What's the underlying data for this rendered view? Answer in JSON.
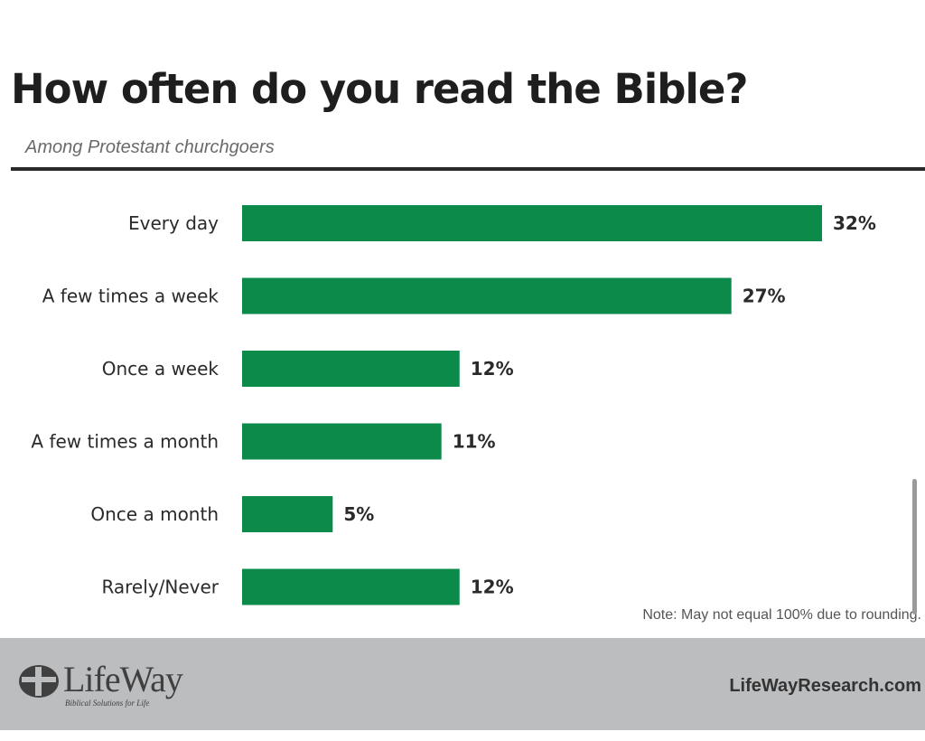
{
  "chart_data": {
    "type": "bar",
    "orientation": "horizontal",
    "title": "How often do you read the Bible?",
    "subtitle": "Among Protestant churchgoers",
    "categories": [
      "Every day",
      "A few times a week",
      "Once a week",
      "A few times a month",
      "Once a month",
      "Rarely/Never"
    ],
    "values": [
      32,
      27,
      12,
      11,
      5,
      12
    ],
    "value_labels": [
      "32%",
      "27%",
      "12%",
      "11%",
      "5%",
      "12%"
    ],
    "xlim": [
      0,
      32
    ],
    "grid": false,
    "bar_color": "#0b8a4a",
    "note": "Note: May not equal 100% due to rounding."
  },
  "footer": {
    "logo_name": "LifeWay",
    "logo_tagline": "Biblical Solutions for Life",
    "website": "LifeWayResearch.com",
    "background_color": "#bcbdbf"
  }
}
